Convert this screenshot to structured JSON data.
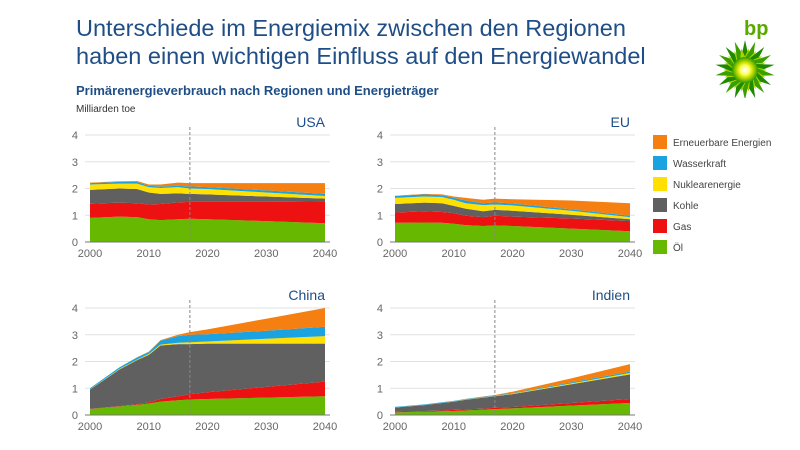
{
  "header": {
    "title_line1": "Unterschiede im Energiemix zwischen den Regionen",
    "title_line2": "haben einen wichtigen Einfluss auf den Energiewandel",
    "subtitle": "Primärenergieverbrauch nach Regionen und Energieträger",
    "unit": "Milliarden toe",
    "logo_text": "bp"
  },
  "colors": {
    "title": "#1f4e86",
    "Öl": "#66b800",
    "Gas": "#ee1111",
    "Kohle": "#606060",
    "Nuklearenergie": "#ffe000",
    "Wasserkraft": "#1aa3e0",
    "Erneuerbare Energien": "#f57f10"
  },
  "chart_data": [
    {
      "type": "area",
      "stacked": true,
      "title": "USA",
      "x": [
        2000,
        2005,
        2008,
        2010,
        2012,
        2015,
        2017,
        2020,
        2030,
        2040
      ],
      "xticks": [
        2000,
        2010,
        2020,
        2030,
        2040
      ],
      "yticks": [
        0,
        1,
        2,
        3,
        4
      ],
      "ylim": [
        0,
        4
      ],
      "projection_start": 2017,
      "series": [
        {
          "name": "Öl",
          "values": [
            0.9,
            0.95,
            0.93,
            0.85,
            0.82,
            0.85,
            0.87,
            0.85,
            0.78,
            0.7
          ]
        },
        {
          "name": "Gas",
          "values": [
            0.53,
            0.52,
            0.52,
            0.55,
            0.6,
            0.63,
            0.63,
            0.65,
            0.72,
            0.82
          ]
        },
        {
          "name": "Kohle",
          "values": [
            0.52,
            0.53,
            0.53,
            0.45,
            0.38,
            0.34,
            0.3,
            0.28,
            0.2,
            0.1
          ]
        },
        {
          "name": "Nuklearenergie",
          "values": [
            0.2,
            0.18,
            0.2,
            0.2,
            0.22,
            0.23,
            0.2,
            0.2,
            0.15,
            0.1
          ]
        },
        {
          "name": "Wasserkraft",
          "values": [
            0.05,
            0.07,
            0.07,
            0.05,
            0.06,
            0.05,
            0.08,
            0.07,
            0.08,
            0.08
          ]
        },
        {
          "name": "Erneuerbare Energien",
          "values": [
            0.02,
            0.02,
            0.03,
            0.05,
            0.07,
            0.12,
            0.12,
            0.15,
            0.27,
            0.4
          ]
        }
      ]
    },
    {
      "type": "area",
      "stacked": true,
      "title": "EU",
      "x": [
        2000,
        2005,
        2008,
        2010,
        2012,
        2015,
        2017,
        2020,
        2030,
        2040
      ],
      "xticks": [
        2000,
        2010,
        2020,
        2030,
        2040
      ],
      "yticks": [
        0,
        1,
        2,
        3,
        4
      ],
      "ylim": [
        0,
        4
      ],
      "projection_start": 2017,
      "series": [
        {
          "name": "Öl",
          "values": [
            0.72,
            0.73,
            0.72,
            0.68,
            0.63,
            0.6,
            0.62,
            0.6,
            0.5,
            0.4
          ]
        },
        {
          "name": "Gas",
          "values": [
            0.38,
            0.42,
            0.4,
            0.4,
            0.35,
            0.33,
            0.36,
            0.35,
            0.38,
            0.38
          ]
        },
        {
          "name": "Kohle",
          "values": [
            0.32,
            0.32,
            0.33,
            0.27,
            0.27,
            0.22,
            0.22,
            0.22,
            0.14,
            0.07
          ]
        },
        {
          "name": "Nuklearenergie",
          "values": [
            0.23,
            0.23,
            0.23,
            0.23,
            0.2,
            0.23,
            0.2,
            0.2,
            0.15,
            0.08
          ]
        },
        {
          "name": "Wasserkraft",
          "values": [
            0.07,
            0.08,
            0.07,
            0.07,
            0.1,
            0.07,
            0.08,
            0.07,
            0.05,
            0.05
          ]
        },
        {
          "name": "Erneuerbare Energien",
          "values": [
            0.01,
            0.02,
            0.03,
            0.05,
            0.1,
            0.13,
            0.14,
            0.16,
            0.33,
            0.47
          ]
        }
      ]
    },
    {
      "type": "area",
      "stacked": true,
      "title": "China",
      "x": [
        2000,
        2005,
        2008,
        2010,
        2012,
        2015,
        2017,
        2020,
        2030,
        2040
      ],
      "xticks": [
        2000,
        2010,
        2020,
        2030,
        2040
      ],
      "yticks": [
        0,
        1,
        2,
        3,
        4
      ],
      "ylim": [
        0,
        4
      ],
      "projection_start": 2017,
      "series": [
        {
          "name": "Öl",
          "values": [
            0.22,
            0.32,
            0.38,
            0.43,
            0.5,
            0.55,
            0.58,
            0.6,
            0.65,
            0.7
          ]
        },
        {
          "name": "Gas",
          "values": [
            0.01,
            0.01,
            0.02,
            0.04,
            0.1,
            0.15,
            0.2,
            0.25,
            0.4,
            0.55
          ]
        },
        {
          "name": "Kohle",
          "values": [
            0.72,
            1.37,
            1.65,
            1.78,
            2.0,
            1.95,
            1.87,
            1.82,
            1.62,
            1.42
          ]
        },
        {
          "name": "Nuklearenergie",
          "values": [
            0.01,
            0.02,
            0.02,
            0.03,
            0.03,
            0.05,
            0.07,
            0.08,
            0.18,
            0.28
          ]
        },
        {
          "name": "Wasserkraft",
          "values": [
            0.04,
            0.06,
            0.08,
            0.07,
            0.15,
            0.25,
            0.28,
            0.27,
            0.3,
            0.35
          ]
        },
        {
          "name": "Erneuerbare Energien",
          "values": [
            0,
            0,
            0.01,
            0.02,
            0.02,
            0.05,
            0.1,
            0.18,
            0.45,
            0.7
          ]
        }
      ]
    },
    {
      "type": "area",
      "stacked": true,
      "title": "Indien",
      "x": [
        2000,
        2005,
        2008,
        2010,
        2012,
        2015,
        2017,
        2020,
        2030,
        2040
      ],
      "xticks": [
        2000,
        2010,
        2020,
        2030,
        2040
      ],
      "yticks": [
        0,
        1,
        2,
        3,
        4
      ],
      "ylim": [
        0,
        4
      ],
      "projection_start": 2017,
      "series": [
        {
          "name": "Öl",
          "values": [
            0.1,
            0.12,
            0.14,
            0.15,
            0.17,
            0.2,
            0.22,
            0.25,
            0.35,
            0.45
          ]
        },
        {
          "name": "Gas",
          "values": [
            0.02,
            0.03,
            0.03,
            0.04,
            0.04,
            0.04,
            0.05,
            0.05,
            0.1,
            0.15
          ]
        },
        {
          "name": "Kohle",
          "values": [
            0.16,
            0.22,
            0.28,
            0.31,
            0.36,
            0.41,
            0.43,
            0.48,
            0.7,
            0.92
          ]
        },
        {
          "name": "Nuklearenergie",
          "values": [
            0.005,
            0.005,
            0.005,
            0.01,
            0.01,
            0.01,
            0.01,
            0.02,
            0.03,
            0.05
          ]
        },
        {
          "name": "Wasserkraft",
          "values": [
            0.02,
            0.02,
            0.02,
            0.02,
            0.02,
            0.02,
            0.02,
            0.02,
            0.04,
            0.05
          ]
        },
        {
          "name": "Erneuerbare Energien",
          "values": [
            0,
            0,
            0,
            0,
            0.005,
            0.01,
            0.02,
            0.05,
            0.15,
            0.28
          ]
        }
      ]
    }
  ],
  "legend": {
    "placement": "right",
    "items": [
      "Erneuerbare Energien",
      "Wasserkraft",
      "Nuklearenergie",
      "Kohle",
      "Gas",
      "Öl"
    ]
  }
}
